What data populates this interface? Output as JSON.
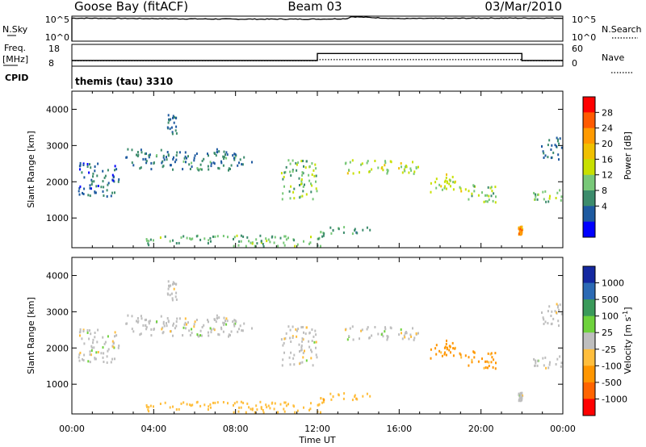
{
  "header": {
    "station": "Goose Bay (fitACF)",
    "beam": "Beam 03",
    "date": "03/Mar/2010"
  },
  "noise_panel": {
    "left_label": "N.Sky",
    "left_ticks": [
      "10^5",
      "10^0"
    ],
    "right_ticks": [
      "10^5",
      "10^0"
    ],
    "right_label": "N.Search"
  },
  "freq_panel": {
    "left_label": "Freq.",
    "left_unit": "[MHz]",
    "left_ticks": [
      "18",
      "8"
    ],
    "right_ticks": [
      "60",
      "0"
    ],
    "right_label": "Nave",
    "cpid_label": "CPID",
    "cpid_value": "themis (tau) 3310"
  },
  "x_axis": {
    "label": "Time UT",
    "ticks": [
      "00:00",
      "04:00",
      "08:00",
      "12:00",
      "16:00",
      "20:00",
      "00:00"
    ]
  },
  "y_axis": {
    "label": "Slant Range [km]",
    "ticks": [
      "1000",
      "2000",
      "3000",
      "4000"
    ]
  },
  "power_colorbar": {
    "label": "Power [dB]",
    "ticks": [
      "28",
      "24",
      "20",
      "16",
      "12",
      "8",
      "4"
    ],
    "colors": [
      "#ff0000",
      "#ff5a00",
      "#ff9a00",
      "#f0c000",
      "#c8e000",
      "#78c878",
      "#3c8c6c",
      "#1e5aa0",
      "#0000ff"
    ]
  },
  "velocity_colorbar": {
    "label": "Velocity [m s",
    "label_sup": "-1",
    "label_end": "]",
    "ticks": [
      "1000",
      "500",
      "100",
      "25",
      "-25",
      "-100",
      "-500",
      "-1000"
    ],
    "colors": [
      "#1428a0",
      "#2c6ab4",
      "#3a9a5a",
      "#6ed23c",
      "#bebebe",
      "#ffbe3c",
      "#ff9600",
      "#ff6400",
      "#ff0000"
    ]
  },
  "chart_data": [
    {
      "type": "line",
      "title": "Goose Bay (fitACF)",
      "series": [
        {
          "name": "N.Sky",
          "x": [
            0,
            0.1,
            4,
            8,
            12,
            13.5,
            13.6,
            16,
            20,
            24
          ],
          "y": [
            4.6,
            4.6,
            4.5,
            4.4,
            4.4,
            4.5,
            4.9,
            4.5,
            4.6,
            4.6
          ]
        },
        {
          "name": "N.Search",
          "x": [
            0,
            24
          ],
          "y": [
            0,
            0
          ]
        }
      ],
      "xlim": [
        0,
        24
      ],
      "ylim_log10": [
        0,
        5
      ]
    },
    {
      "type": "line",
      "series": [
        {
          "name": "Freq.",
          "x": [
            0,
            12,
            12,
            22,
            22,
            24
          ],
          "y": [
            10.6,
            10.6,
            13.8,
            13.8,
            10.6,
            10.6
          ]
        },
        {
          "name": "Nave",
          "x": [
            0,
            12,
            12,
            22,
            22,
            24
          ],
          "y": [
            15,
            15,
            18,
            18,
            15,
            15
          ]
        }
      ],
      "xlim": [
        0,
        24
      ],
      "ylim": [
        8,
        18
      ],
      "ylim_right": [
        0,
        60
      ]
    },
    {
      "type": "heatmap",
      "name": "Power",
      "xlabel": "Time UT",
      "ylabel": "Slant Range [km]",
      "xlim": [
        0,
        24
      ],
      "ylim": [
        180,
        4500
      ],
      "zlabel": "Power [dB]",
      "zrange": [
        0,
        30
      ],
      "features": [
        {
          "t0": 0.3,
          "t1": 2.3,
          "r0": 1500,
          "r1": 2500,
          "v": 5
        },
        {
          "t0": 2.6,
          "t1": 8.8,
          "r0": 2300,
          "r1": 2900,
          "v": 6
        },
        {
          "t0": 4.6,
          "t1": 5.1,
          "r0": 3300,
          "r1": 3850,
          "v": 6
        },
        {
          "t0": 10.2,
          "t1": 12.0,
          "r0": 1500,
          "r1": 2600,
          "v": 12
        },
        {
          "t0": 13.3,
          "t1": 16.9,
          "r0": 2200,
          "r1": 2600,
          "v": 14
        },
        {
          "t0": 17.4,
          "t1": 19.2,
          "r0": 1700,
          "r1": 2200,
          "v": 15
        },
        {
          "t0": 19.0,
          "t1": 20.7,
          "r0": 1400,
          "r1": 1900,
          "v": 12
        },
        {
          "t0": 22.5,
          "t1": 24.0,
          "r0": 1400,
          "r1": 1800,
          "v": 12
        },
        {
          "t0": 22.8,
          "t1": 24.0,
          "r0": 2600,
          "r1": 3200,
          "v": 6
        },
        {
          "t0": 3.6,
          "t1": 12.3,
          "r0": 200,
          "r1": 500,
          "v": 10
        },
        {
          "t0": 12.0,
          "t1": 14.6,
          "r0": 550,
          "r1": 750,
          "v": 9
        },
        {
          "t0": 21.8,
          "t1": 22.0,
          "r0": 500,
          "r1": 750,
          "v": 22
        }
      ]
    },
    {
      "type": "heatmap",
      "name": "Velocity",
      "xlabel": "Time UT",
      "ylabel": "Slant Range [km]",
      "xlim": [
        0,
        24
      ],
      "ylim": [
        180,
        4500
      ],
      "zlabel": "Velocity [m s-1]",
      "zrange": [
        -1000,
        1000
      ],
      "features": [
        {
          "t0": 0.3,
          "t1": 2.3,
          "r0": 1500,
          "r1": 2500,
          "v": 0
        },
        {
          "t0": 2.6,
          "t1": 8.8,
          "r0": 2300,
          "r1": 2900,
          "v": 0
        },
        {
          "t0": 4.6,
          "t1": 5.1,
          "r0": 3300,
          "r1": 3850,
          "v": 0
        },
        {
          "t0": 10.2,
          "t1": 12.0,
          "r0": 1500,
          "r1": 2600,
          "v": 0
        },
        {
          "t0": 13.3,
          "t1": 16.9,
          "r0": 2200,
          "r1": 2600,
          "v": 0
        },
        {
          "t0": 17.4,
          "t1": 19.2,
          "r0": 1700,
          "r1": 2200,
          "v": -120
        },
        {
          "t0": 19.0,
          "t1": 20.7,
          "r0": 1400,
          "r1": 1900,
          "v": -120
        },
        {
          "t0": 22.5,
          "t1": 24.0,
          "r0": 1400,
          "r1": 1800,
          "v": 0
        },
        {
          "t0": 22.8,
          "t1": 24.0,
          "r0": 2600,
          "r1": 3200,
          "v": 0
        },
        {
          "t0": 3.6,
          "t1": 12.3,
          "r0": 200,
          "r1": 500,
          "v": -60
        },
        {
          "t0": 12.0,
          "t1": 14.6,
          "r0": 550,
          "r1": 750,
          "v": -80
        },
        {
          "t0": 21.8,
          "t1": 22.0,
          "r0": 500,
          "r1": 750,
          "v": 0
        }
      ]
    }
  ]
}
